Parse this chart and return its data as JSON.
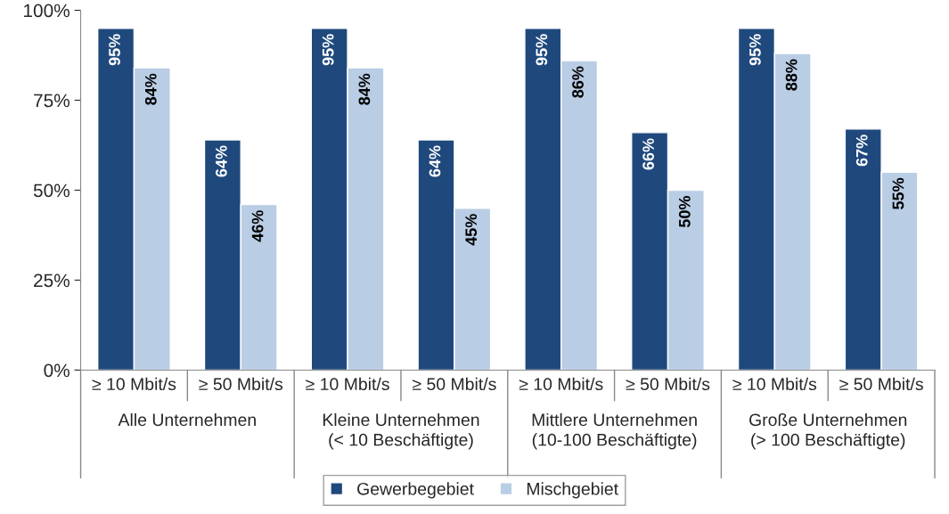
{
  "chart_data": {
    "type": "bar",
    "categories": [
      "≥ 10 Mbit/s",
      "≥ 50 Mbit/s",
      "≥ 10 Mbit/s",
      "≥ 50 Mbit/s",
      "≥ 10 Mbit/s",
      "≥ 50 Mbit/s",
      "≥ 10 Mbit/s",
      "≥ 50 Mbit/s"
    ],
    "series": [
      {
        "name": "Gewerbegebiet",
        "color": "#1f497d",
        "values": [
          95,
          64,
          95,
          64,
          95,
          66,
          95,
          67
        ],
        "value_labels": [
          "95%",
          "64%",
          "95%",
          "64%",
          "95%",
          "66%",
          "95%",
          "67%"
        ]
      },
      {
        "name": "Mischgebiet",
        "color": "#b9cde5",
        "values": [
          84,
          46,
          84,
          45,
          86,
          50,
          88,
          55
        ],
        "value_labels": [
          "84%",
          "46%",
          "84%",
          "45%",
          "86%",
          "50%",
          "88%",
          "55%"
        ]
      }
    ],
    "annotations": [
      "Alle Unternehmen",
      "Kleine Unternehmen\n(< 10 Beschäftigte)",
      "Mittlere Unternehmen\n(10-100 Beschäftigte)",
      "Große Unternehmen\n(> 100 Beschäftigte)"
    ],
    "ylim": [
      0,
      100
    ],
    "yticks": [
      {
        "value": 0,
        "label": "0%"
      },
      {
        "value": 25,
        "label": "25%"
      },
      {
        "value": 50,
        "label": "50%"
      },
      {
        "value": 75,
        "label": "75%"
      },
      {
        "value": 100,
        "label": "100%"
      }
    ],
    "grid": false,
    "legend": "bottom"
  }
}
